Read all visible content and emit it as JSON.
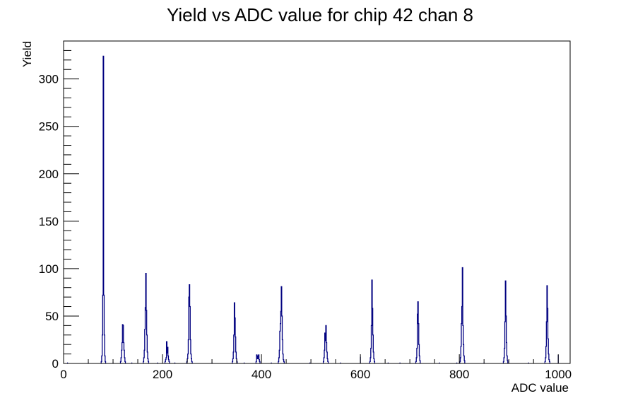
{
  "chart_data": {
    "type": "bar",
    "title": "Yield vs ADC value for chip 42 chan 8",
    "xlabel": "ADC value",
    "ylabel": "Yield",
    "xlim": [
      0,
      1024
    ],
    "ylim": [
      0,
      340
    ],
    "x_ticks": [
      0,
      200,
      400,
      600,
      800,
      1000
    ],
    "y_ticks": [
      0,
      50,
      100,
      150,
      200,
      250,
      300
    ],
    "line_color": "#000080",
    "grid": false,
    "legend": "none",
    "peaks": [
      {
        "x": 80,
        "values": [
          2,
          8,
          30,
          72,
          324,
          72,
          30,
          8,
          2
        ]
      },
      {
        "x": 120,
        "values": [
          2,
          6,
          14,
          22,
          41,
          40,
          22,
          14,
          6,
          2
        ]
      },
      {
        "x": 166,
        "values": [
          2,
          6,
          14,
          36,
          59,
          95,
          56,
          30,
          12,
          5,
          2
        ]
      },
      {
        "x": 209,
        "values": [
          2,
          4,
          6,
          23,
          11,
          17,
          8,
          4,
          2
        ]
      },
      {
        "x": 254,
        "values": [
          2,
          5,
          10,
          25,
          70,
          83,
          60,
          25,
          10,
          5,
          2
        ]
      },
      {
        "x": 346,
        "values": [
          2,
          5,
          12,
          30,
          64,
          48,
          28,
          12,
          5,
          2
        ]
      },
      {
        "x": 393,
        "values": [
          2,
          9,
          8,
          5,
          8,
          9,
          4,
          2
        ]
      },
      {
        "x": 440,
        "values": [
          2,
          6,
          14,
          34,
          42,
          55,
          81,
          50,
          25,
          10,
          4,
          2
        ]
      },
      {
        "x": 530,
        "values": [
          2,
          6,
          14,
          32,
          24,
          40,
          22,
          12,
          5,
          2
        ]
      },
      {
        "x": 624,
        "values": [
          2,
          6,
          16,
          40,
          88,
          58,
          30,
          12,
          5,
          2
        ]
      },
      {
        "x": 716,
        "values": [
          2,
          6,
          16,
          52,
          65,
          42,
          20,
          8,
          3
        ]
      },
      {
        "x": 806,
        "values": [
          2,
          6,
          18,
          42,
          60,
          101,
          40,
          20,
          8,
          3
        ]
      },
      {
        "x": 893,
        "values": [
          2,
          6,
          16,
          44,
          87,
          50,
          22,
          8,
          3
        ]
      },
      {
        "x": 978,
        "values": [
          2,
          6,
          18,
          44,
          82,
          58,
          26,
          10,
          4,
          2
        ]
      }
    ],
    "stray_bins": [
      {
        "x": 8,
        "value": 1
      },
      {
        "x": 50,
        "value": 1
      },
      {
        "x": 100,
        "value": 1
      },
      {
        "x": 138,
        "value": 1
      },
      {
        "x": 190,
        "value": 1
      },
      {
        "x": 225,
        "value": 1
      },
      {
        "x": 300,
        "value": 1
      },
      {
        "x": 365,
        "value": 1
      },
      {
        "x": 420,
        "value": 1
      },
      {
        "x": 498,
        "value": 1
      },
      {
        "x": 560,
        "value": 1
      },
      {
        "x": 600,
        "value": 7
      },
      {
        "x": 656,
        "value": 1
      },
      {
        "x": 680,
        "value": 1
      },
      {
        "x": 760,
        "value": 1
      },
      {
        "x": 795,
        "value": 1
      },
      {
        "x": 850,
        "value": 1
      },
      {
        "x": 940,
        "value": 1
      },
      {
        "x": 1000,
        "value": 9
      }
    ]
  }
}
